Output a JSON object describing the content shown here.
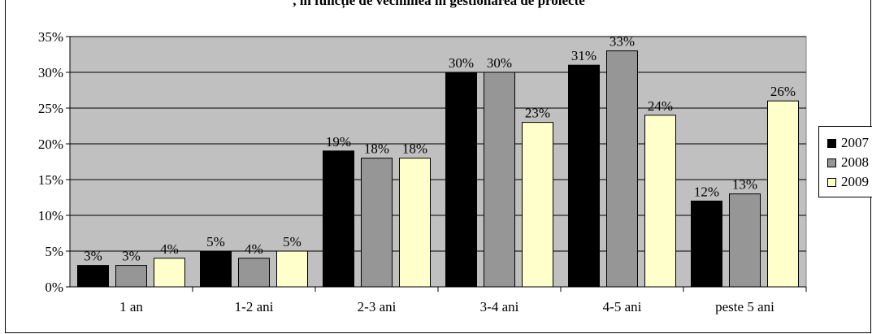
{
  "chart_data": {
    "type": "bar",
    "title": ", în funcție de vechimea în gestionarea de proiecte",
    "categories": [
      "1 an",
      "1-2 ani",
      "2-3 ani",
      "3-4 ani",
      "4-5 ani",
      "peste 5 ani"
    ],
    "series": [
      {
        "name": "2007",
        "color": "#000000",
        "values": [
          3,
          5,
          19,
          30,
          31,
          12
        ]
      },
      {
        "name": "2008",
        "color": "#969696",
        "values": [
          3,
          4,
          18,
          30,
          33,
          13
        ]
      },
      {
        "name": "2009",
        "color": "#FFFFCC",
        "values": [
          4,
          5,
          18,
          23,
          24,
          26
        ]
      }
    ],
    "ylim": [
      0,
      35
    ],
    "yticks": [
      0,
      5,
      10,
      15,
      20,
      25,
      30,
      35
    ],
    "ytick_labels": [
      "0%",
      "5%",
      "10%",
      "15%",
      "20%",
      "25%",
      "30%",
      "35%"
    ],
    "value_suffix": "%",
    "plot_background": "#C0C0C0",
    "grid": true,
    "legend_position": "right",
    "xlabel": "",
    "ylabel": ""
  }
}
